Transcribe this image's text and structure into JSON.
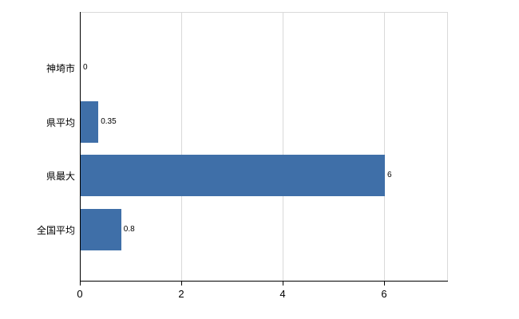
{
  "chart_data": {
    "type": "bar",
    "orientation": "horizontal",
    "title": "",
    "xlabel": "",
    "ylabel": "",
    "categories": [
      "神埼市",
      "県平均",
      "県最大",
      "全国平均"
    ],
    "values": [
      0,
      0.35,
      6,
      0.8
    ],
    "value_labels": [
      "0",
      "0.35",
      "6",
      "0.8"
    ],
    "xlim": [
      0,
      7.25
    ],
    "xticks": [
      0,
      2,
      4,
      6
    ],
    "bar_color": "#3f6fa8",
    "grid": true,
    "gridline_color": "#d9d9d9",
    "axis_color": "#000000",
    "text_color": "#000000",
    "legend": false
  }
}
